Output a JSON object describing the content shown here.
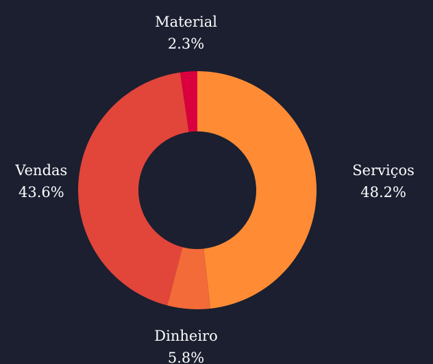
{
  "chart_data": {
    "type": "pie",
    "categories": [
      "Serviços",
      "Dinheiro",
      "Vendas",
      "Material"
    ],
    "values": [
      48.2,
      5.8,
      43.6,
      2.3
    ],
    "value_labels": [
      "48.2%",
      "5.8%",
      "43.6%",
      "2.3%"
    ],
    "colors": [
      "#ff8c35",
      "#f26b38",
      "#e2453a",
      "#d9003d"
    ],
    "hole": true
  }
}
